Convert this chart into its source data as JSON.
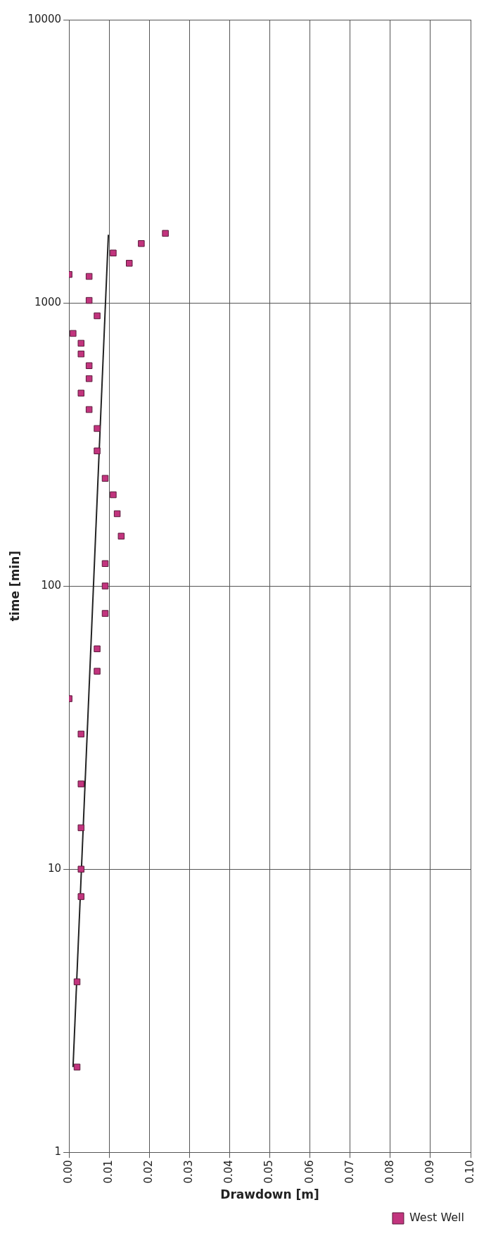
{
  "chart_data": {
    "type": "scatter",
    "xlabel": "Drawdown [m]",
    "ylabel": "time [min]",
    "log": "y",
    "grid": true,
    "legend": "bottom right",
    "marker": "square",
    "xlim": [
      0,
      0.1
    ],
    "xticks": [
      {
        "value": 0,
        "label": "0.00"
      },
      {
        "value": 0.01,
        "label": "0.01"
      },
      {
        "value": 0.02,
        "label": "0.02"
      },
      {
        "value": 0.03,
        "label": "0.03"
      },
      {
        "value": 0.04,
        "label": "0.04"
      },
      {
        "value": 0.05,
        "label": "0.05"
      },
      {
        "value": 0.06,
        "label": "0.06"
      },
      {
        "value": 0.07,
        "label": "0.07"
      },
      {
        "value": 0.08,
        "label": "0.08"
      },
      {
        "value": 0.09,
        "label": "0.09"
      },
      {
        "value": 0.1,
        "label": "0.10"
      }
    ],
    "ylim": [
      1,
      10000
    ],
    "yticks": [
      1,
      10,
      100,
      1000,
      10000
    ],
    "series": [
      {
        "name": "West Well",
        "type": "scatter",
        "color": "#c2347e",
        "x": [
          0.002,
          0.002,
          0.003,
          0.003,
          0.003,
          0.003,
          0.003,
          0,
          0.007,
          0.007,
          0.009,
          0.009,
          0.009,
          0.013,
          0.012,
          0.011,
          0.009,
          0.007,
          0.007,
          0.005,
          0.003,
          0.005,
          0.005,
          0.003,
          0.003,
          0.001,
          0.007,
          0.005,
          0.005,
          0,
          0.015,
          0.011,
          0.018,
          0.024
        ],
        "values": [
          2,
          4,
          8,
          10,
          14,
          20,
          30,
          40,
          50,
          60,
          80,
          100,
          120,
          150,
          180,
          210,
          240,
          300,
          360,
          420,
          480,
          540,
          600,
          660,
          720,
          780,
          900,
          1020,
          1240,
          1260,
          1380,
          1500,
          1620,
          1760
        ]
      },
      {
        "type": "line",
        "color": "#222222",
        "line_style": "solid",
        "marker": "none",
        "x": [
          0.001,
          0.0098
        ],
        "values": [
          2,
          1740
        ]
      }
    ]
  }
}
